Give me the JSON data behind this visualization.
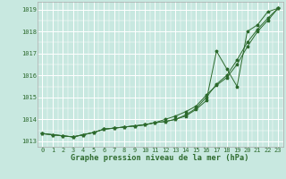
{
  "xlabel": "Graphe pression niveau de la mer (hPa)",
  "x": [
    0,
    1,
    2,
    3,
    4,
    5,
    6,
    7,
    8,
    9,
    10,
    11,
    12,
    13,
    14,
    15,
    16,
    17,
    18,
    19,
    20,
    21,
    22,
    23
  ],
  "line1": [
    1013.35,
    1013.3,
    1013.25,
    1013.2,
    1013.3,
    1013.4,
    1013.55,
    1013.6,
    1013.65,
    1013.7,
    1013.75,
    1013.85,
    1013.9,
    1014.0,
    1014.15,
    1014.45,
    1014.85,
    1017.1,
    1016.3,
    1015.5,
    1018.0,
    1018.3,
    1018.9,
    1019.05
  ],
  "line2": [
    1013.35,
    1013.3,
    1013.25,
    1013.2,
    1013.3,
    1013.4,
    1013.55,
    1013.6,
    1013.65,
    1013.7,
    1013.75,
    1013.85,
    1013.9,
    1014.0,
    1014.2,
    1014.5,
    1015.0,
    1015.6,
    1016.0,
    1016.7,
    1017.5,
    1018.1,
    1018.6,
    1019.05
  ],
  "line3": [
    1013.35,
    1013.3,
    1013.25,
    1013.2,
    1013.3,
    1013.4,
    1013.55,
    1013.6,
    1013.65,
    1013.7,
    1013.75,
    1013.85,
    1014.0,
    1014.15,
    1014.35,
    1014.6,
    1015.1,
    1015.55,
    1015.9,
    1016.5,
    1017.3,
    1018.0,
    1018.5,
    1019.05
  ],
  "line_color": "#2d6a2d",
  "marker_color": "#2d6a2d",
  "bg_color": "#c8e8e0",
  "grid_color": "#ffffff",
  "ylim": [
    1012.75,
    1019.35
  ],
  "yticks": [
    1013,
    1014,
    1015,
    1016,
    1017,
    1018,
    1019
  ],
  "xticks": [
    0,
    1,
    2,
    3,
    4,
    5,
    6,
    7,
    8,
    9,
    10,
    11,
    12,
    13,
    14,
    15,
    16,
    17,
    18,
    19,
    20,
    21,
    22,
    23
  ],
  "tick_fontsize": 5.0,
  "label_fontsize": 6.2
}
